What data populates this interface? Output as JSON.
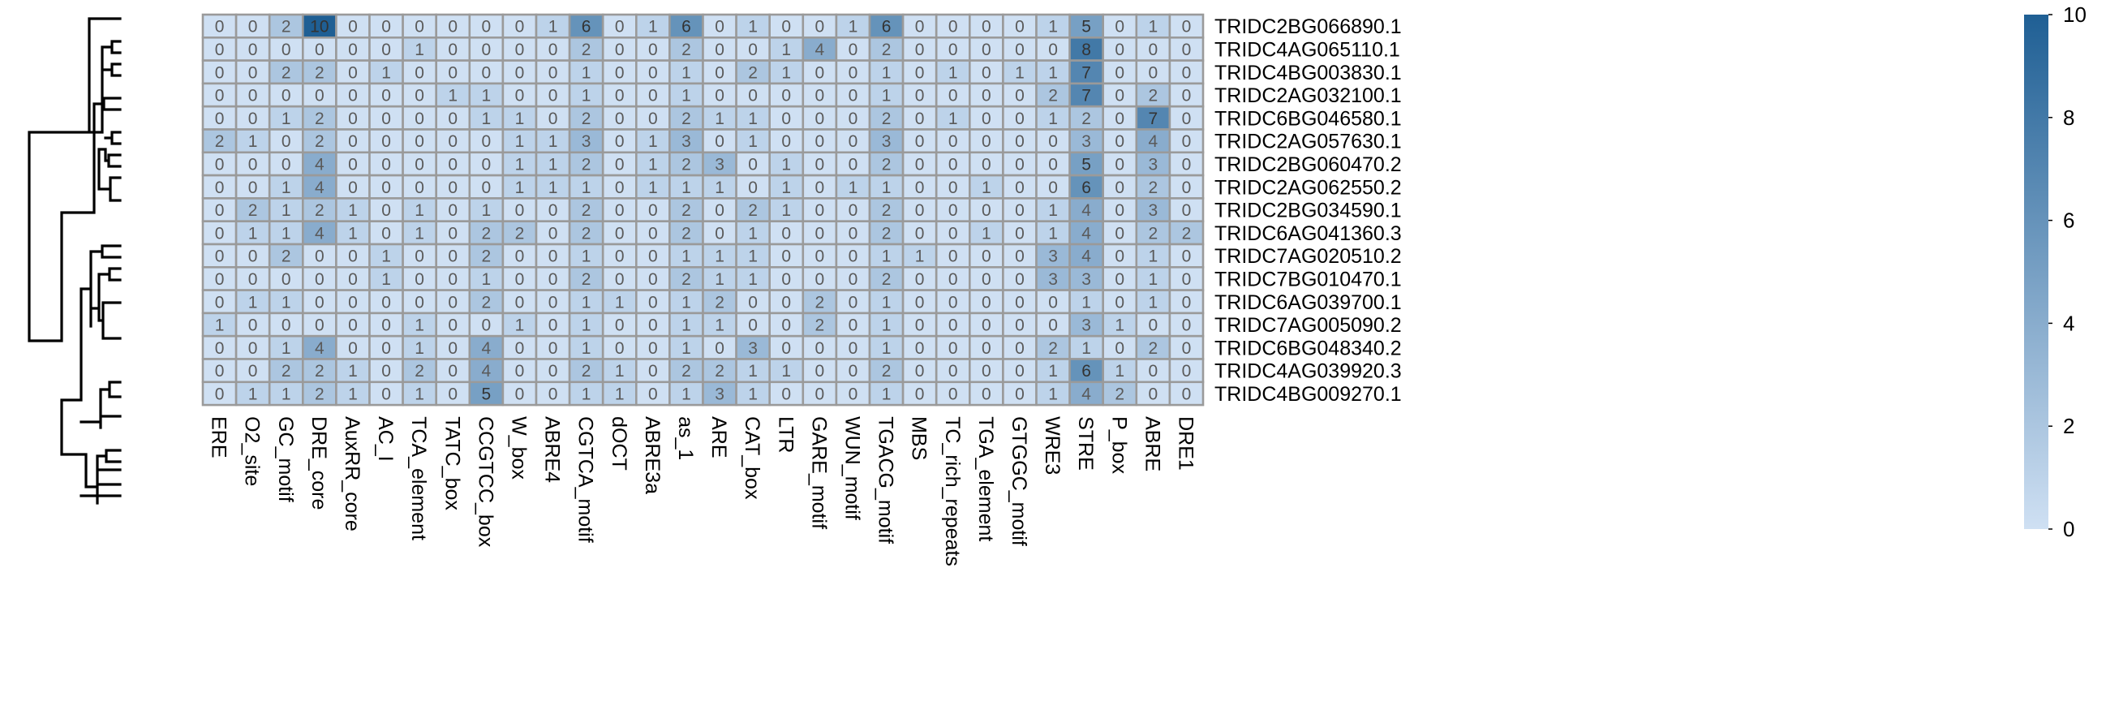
{
  "chart_data": {
    "type": "heatmap",
    "title": "",
    "xlabel": "",
    "ylabel": "",
    "columns": [
      "ERE",
      "O2_site",
      "GC_motif",
      "DRE_core",
      "AuxRR_core",
      "AC_I",
      "TCA_element",
      "TATC_box",
      "CCGTCC_box",
      "W_box",
      "ABRE4",
      "CGTCA_motif",
      "dOCT",
      "ABRE3a",
      "as_1",
      "ARE",
      "CAT_box",
      "LTR",
      "GARE_motif",
      "WUN_motif",
      "TGACG_motif",
      "MBS",
      "TC_rich_repeats",
      "TGA_element",
      "GTGGC_motif",
      "WRE3",
      "STRE",
      "P_box",
      "ABRE",
      "DRE1"
    ],
    "rows": [
      "TRIDC2BG066890.1",
      "TRIDC4AG065110.1",
      "TRIDC4BG003830.1",
      "TRIDC2AG032100.1",
      "TRIDC6BG046580.1",
      "TRIDC2AG057630.1",
      "TRIDC2BG060470.2",
      "TRIDC2AG062550.2",
      "TRIDC2BG034590.1",
      "TRIDC6AG041360.3",
      "TRIDC7AG020510.2",
      "TRIDC7BG010470.1",
      "TRIDC6AG039700.1",
      "TRIDC7AG005090.2",
      "TRIDC6BG048340.2",
      "TRIDC4AG039920.3",
      "TRIDC4BG009270.1"
    ],
    "values": [
      [
        0,
        0,
        2,
        10,
        0,
        0,
        0,
        0,
        0,
        0,
        1,
        6,
        0,
        1,
        6,
        0,
        1,
        0,
        0,
        1,
        6,
        0,
        0,
        0,
        0,
        1,
        5,
        0,
        1,
        0
      ],
      [
        0,
        0,
        0,
        0,
        0,
        0,
        1,
        0,
        0,
        0,
        0,
        2,
        0,
        0,
        2,
        0,
        0,
        1,
        4,
        0,
        2,
        0,
        0,
        0,
        0,
        0,
        8,
        0,
        0,
        0
      ],
      [
        0,
        0,
        2,
        2,
        0,
        1,
        0,
        0,
        0,
        0,
        0,
        1,
        0,
        0,
        1,
        0,
        2,
        1,
        0,
        0,
        1,
        0,
        1,
        0,
        1,
        1,
        7,
        0,
        0,
        0
      ],
      [
        0,
        0,
        0,
        0,
        0,
        0,
        0,
        1,
        1,
        0,
        0,
        1,
        0,
        0,
        1,
        0,
        0,
        0,
        0,
        0,
        1,
        0,
        0,
        0,
        0,
        2,
        7,
        0,
        2,
        0
      ],
      [
        0,
        0,
        1,
        2,
        0,
        0,
        0,
        0,
        1,
        1,
        0,
        2,
        0,
        0,
        2,
        1,
        1,
        0,
        0,
        0,
        2,
        0,
        1,
        0,
        0,
        1,
        2,
        0,
        7,
        0
      ],
      [
        2,
        1,
        0,
        2,
        0,
        0,
        0,
        0,
        0,
        1,
        1,
        3,
        0,
        1,
        3,
        0,
        1,
        0,
        0,
        0,
        3,
        0,
        0,
        0,
        0,
        0,
        3,
        0,
        4,
        0
      ],
      [
        0,
        0,
        0,
        4,
        0,
        0,
        0,
        0,
        0,
        1,
        1,
        2,
        0,
        1,
        2,
        3,
        0,
        1,
        0,
        0,
        2,
        0,
        0,
        0,
        0,
        0,
        5,
        0,
        3,
        0
      ],
      [
        0,
        0,
        1,
        4,
        0,
        0,
        0,
        0,
        0,
        1,
        1,
        1,
        0,
        1,
        1,
        1,
        0,
        1,
        0,
        1,
        1,
        0,
        0,
        1,
        0,
        0,
        6,
        0,
        2,
        0
      ],
      [
        0,
        2,
        1,
        2,
        1,
        0,
        1,
        0,
        1,
        0,
        0,
        2,
        0,
        0,
        2,
        0,
        2,
        1,
        0,
        0,
        2,
        0,
        0,
        0,
        0,
        1,
        4,
        0,
        3,
        0
      ],
      [
        0,
        1,
        1,
        4,
        1,
        0,
        1,
        0,
        2,
        2,
        0,
        2,
        0,
        0,
        2,
        0,
        1,
        0,
        0,
        0,
        2,
        0,
        0,
        1,
        0,
        1,
        4,
        0,
        2,
        2
      ],
      [
        0,
        0,
        2,
        0,
        0,
        1,
        0,
        0,
        2,
        0,
        0,
        1,
        0,
        0,
        1,
        1,
        1,
        0,
        0,
        0,
        1,
        1,
        0,
        0,
        0,
        3,
        4,
        0,
        1,
        0
      ],
      [
        0,
        0,
        0,
        0,
        0,
        1,
        0,
        0,
        1,
        0,
        0,
        2,
        0,
        0,
        2,
        1,
        1,
        0,
        0,
        0,
        2,
        0,
        0,
        0,
        0,
        3,
        3,
        0,
        1,
        0
      ],
      [
        0,
        1,
        1,
        0,
        0,
        0,
        0,
        0,
        2,
        0,
        0,
        1,
        1,
        0,
        1,
        2,
        0,
        0,
        2,
        0,
        1,
        0,
        0,
        0,
        0,
        0,
        1,
        0,
        1,
        0
      ],
      [
        1,
        0,
        0,
        0,
        0,
        0,
        1,
        0,
        0,
        1,
        0,
        1,
        0,
        0,
        1,
        1,
        0,
        0,
        2,
        0,
        1,
        0,
        0,
        0,
        0,
        0,
        3,
        1,
        0,
        0
      ],
      [
        0,
        0,
        1,
        4,
        0,
        0,
        1,
        0,
        4,
        0,
        0,
        1,
        0,
        0,
        1,
        0,
        3,
        0,
        0,
        0,
        1,
        0,
        0,
        0,
        0,
        2,
        1,
        0,
        2,
        0
      ],
      [
        0,
        0,
        2,
        2,
        1,
        0,
        2,
        0,
        4,
        0,
        0,
        2,
        1,
        0,
        2,
        2,
        1,
        1,
        0,
        0,
        2,
        0,
        0,
        0,
        0,
        1,
        6,
        1,
        0,
        0
      ],
      [
        0,
        1,
        1,
        2,
        1,
        0,
        1,
        0,
        5,
        0,
        0,
        1,
        1,
        0,
        1,
        3,
        1,
        0,
        0,
        0,
        1,
        0,
        0,
        0,
        0,
        1,
        4,
        2,
        0,
        0
      ]
    ],
    "colorbar": {
      "ticks": [
        0,
        2,
        4,
        6,
        8,
        10
      ],
      "min": 0,
      "max": 10,
      "low_color": "#cfe0f3",
      "high_color": "#1f5f94"
    },
    "cell_border_color": "#9a9a9a",
    "dendrogram": "hierarchical clustering tree of rows, drawn on the left"
  }
}
